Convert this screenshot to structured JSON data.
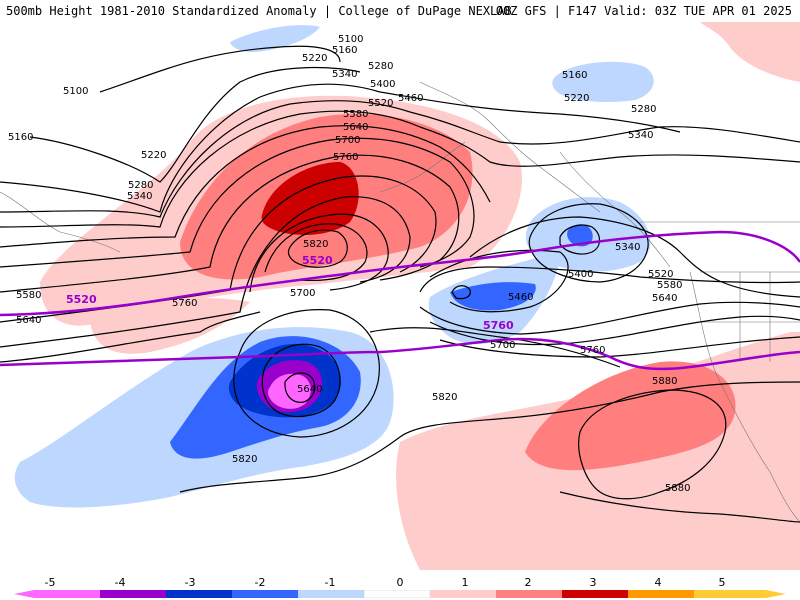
{
  "header": {
    "left": "500mb Height 1981-2010 Standardized Anomaly | College of DuPage NEXLAB",
    "right": "00Z GFS | F147 Valid: 03Z TUE APR 01 2025"
  },
  "height_labels": [
    "5100",
    "5160",
    "5220",
    "5280",
    "5340",
    "5400",
    "5460",
    "5520",
    "5580",
    "5640",
    "5700",
    "5760",
    "5820",
    "5880"
  ],
  "trough_label": "5640",
  "colorbar": {
    "ticks": [
      "-5",
      "-4",
      "-3",
      "-2",
      "-1",
      "0",
      "1",
      "2",
      "3",
      "4",
      "5"
    ],
    "colors": [
      "#ff66ff",
      "#9900cc",
      "#0033cc",
      "#3366ff",
      "#bdd7ff",
      "#ffffff",
      "#ffcccc",
      "#ff8080",
      "#cc0000",
      "#ff9900",
      "#ffcc33"
    ]
  },
  "colors": {
    "neg1": "#bdd7ff",
    "neg2": "#3366ff",
    "neg3": "#0033cc",
    "neg4": "#9900cc",
    "neg5": "#ff66ff",
    "pos1": "#ffcccc",
    "pos2": "#ff7f7f",
    "pos3": "#cc0000",
    "contour_5520_5760": "#9900cc"
  }
}
